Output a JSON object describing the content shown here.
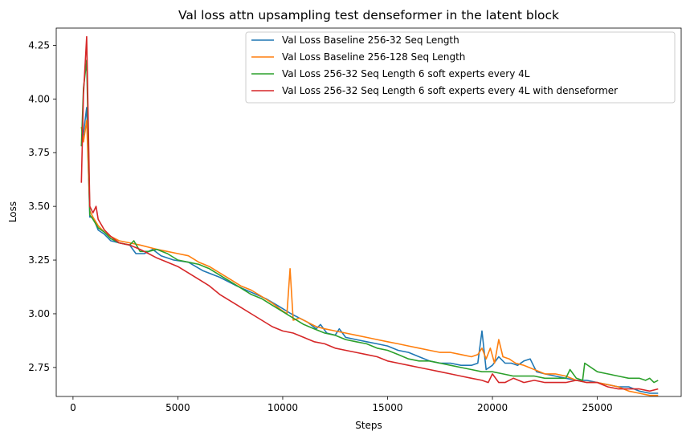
{
  "chart_data": {
    "type": "line",
    "title": "Val loss attn upsampling test denseformer in the latent block",
    "xlabel": "Steps",
    "ylabel": "Loss",
    "xlim": [
      -800,
      29000
    ],
    "ylim": [
      2.615,
      4.33
    ],
    "xticks": [
      0,
      5000,
      10000,
      15000,
      20000,
      25000
    ],
    "yticks": [
      2.75,
      3.0,
      3.25,
      3.5,
      3.75,
      4.0,
      4.25
    ],
    "xtick_labels": [
      "0",
      "5000",
      "10000",
      "15000",
      "20000",
      "25000"
    ],
    "ytick_labels": [
      "2.75",
      "3.00",
      "3.25",
      "3.50",
      "3.75",
      "4.00",
      "4.25"
    ],
    "grid": false,
    "legend_position": "top-right",
    "series": [
      {
        "name": "Val Loss Baseline 256-32 Seq Length",
        "color": "#1f77b4",
        "x": [
          400,
          500,
          650,
          800,
          950,
          1200,
          1500,
          1800,
          2200,
          2700,
          3000,
          3400,
          3800,
          4200,
          4800,
          5500,
          6200,
          7000,
          7800,
          8500,
          9200,
          9900,
          10400,
          10800,
          11200,
          11600,
          11800,
          12100,
          12500,
          12700,
          13000,
          13500,
          14000,
          14500,
          15000,
          15500,
          16000,
          16500,
          17000,
          17500,
          18000,
          18500,
          19000,
          19300,
          19500,
          19700,
          20000,
          20300,
          20600,
          20900,
          21200,
          21500,
          21800,
          22100,
          22500,
          23000,
          23500,
          24000,
          24500,
          25000,
          25500,
          26000,
          26500,
          27000,
          27500,
          27900
        ],
        "y": [
          3.78,
          3.84,
          3.96,
          3.45,
          3.45,
          3.39,
          3.37,
          3.34,
          3.33,
          3.32,
          3.28,
          3.28,
          3.3,
          3.27,
          3.25,
          3.24,
          3.2,
          3.17,
          3.13,
          3.1,
          3.07,
          3.03,
          3.0,
          2.98,
          2.96,
          2.93,
          2.95,
          2.91,
          2.9,
          2.93,
          2.89,
          2.88,
          2.87,
          2.86,
          2.85,
          2.83,
          2.82,
          2.8,
          2.78,
          2.77,
          2.77,
          2.76,
          2.76,
          2.77,
          2.92,
          2.74,
          2.76,
          2.8,
          2.77,
          2.77,
          2.76,
          2.78,
          2.79,
          2.73,
          2.72,
          2.71,
          2.7,
          2.69,
          2.69,
          2.68,
          2.67,
          2.66,
          2.66,
          2.64,
          2.63,
          2.63
        ]
      },
      {
        "name": "Val Loss Baseline 256-128 Seq Length",
        "color": "#ff7f0e",
        "x": [
          400,
          500,
          650,
          800,
          950,
          1200,
          1500,
          1800,
          2200,
          2700,
          3200,
          3600,
          4000,
          4500,
          5000,
          5500,
          6000,
          6500,
          7000,
          7500,
          8000,
          8500,
          9000,
          9500,
          9900,
          10200,
          10350,
          10500,
          10800,
          11200,
          11600,
          12000,
          12500,
          13000,
          13500,
          14000,
          14500,
          15000,
          15500,
          16000,
          16500,
          17000,
          17500,
          18000,
          18500,
          19000,
          19300,
          19500,
          19700,
          19900,
          20100,
          20300,
          20500,
          20800,
          21100,
          21500,
          22000,
          22500,
          23000,
          23500,
          24000,
          24500,
          25000,
          25500,
          26000,
          26500,
          27000,
          27500,
          27900
        ],
        "y": [
          3.87,
          3.8,
          3.9,
          3.48,
          3.45,
          3.41,
          3.38,
          3.36,
          3.34,
          3.33,
          3.32,
          3.31,
          3.3,
          3.29,
          3.28,
          3.27,
          3.24,
          3.22,
          3.19,
          3.16,
          3.13,
          3.11,
          3.08,
          3.05,
          3.02,
          3.0,
          3.21,
          2.97,
          2.98,
          2.96,
          2.94,
          2.93,
          2.92,
          2.91,
          2.9,
          2.89,
          2.88,
          2.87,
          2.86,
          2.85,
          2.84,
          2.83,
          2.82,
          2.82,
          2.81,
          2.8,
          2.81,
          2.84,
          2.79,
          2.84,
          2.77,
          2.88,
          2.8,
          2.79,
          2.77,
          2.76,
          2.74,
          2.72,
          2.72,
          2.71,
          2.69,
          2.68,
          2.68,
          2.67,
          2.66,
          2.64,
          2.63,
          2.62,
          2.62
        ]
      },
      {
        "name": "Val Loss 256-32 Seq Length 6 soft experts every 4L",
        "color": "#2ca02c",
        "x": [
          400,
          500,
          650,
          800,
          950,
          1200,
          1500,
          1800,
          2200,
          2700,
          2900,
          3200,
          3600,
          4000,
          4500,
          5000,
          5500,
          6000,
          6500,
          7000,
          7500,
          8000,
          8500,
          9000,
          9500,
          10000,
          10500,
          11000,
          11500,
          12000,
          12500,
          13000,
          13500,
          14000,
          14500,
          15000,
          15500,
          16000,
          16500,
          17000,
          17500,
          18000,
          18500,
          19000,
          19500,
          20000,
          20500,
          21000,
          21500,
          22000,
          22500,
          23000,
          23500,
          23700,
          24000,
          24300,
          24400,
          25000,
          25500,
          26000,
          26500,
          27000,
          27300,
          27500,
          27700,
          27900
        ],
        "y": [
          3.78,
          4.05,
          4.18,
          3.46,
          3.44,
          3.4,
          3.38,
          3.35,
          3.33,
          3.32,
          3.34,
          3.29,
          3.29,
          3.3,
          3.28,
          3.25,
          3.24,
          3.23,
          3.21,
          3.18,
          3.15,
          3.12,
          3.09,
          3.07,
          3.04,
          3.01,
          2.98,
          2.95,
          2.93,
          2.91,
          2.9,
          2.88,
          2.87,
          2.86,
          2.84,
          2.83,
          2.81,
          2.79,
          2.78,
          2.78,
          2.77,
          2.76,
          2.75,
          2.74,
          2.73,
          2.73,
          2.72,
          2.71,
          2.71,
          2.71,
          2.7,
          2.7,
          2.7,
          2.74,
          2.7,
          2.69,
          2.77,
          2.73,
          2.72,
          2.71,
          2.7,
          2.7,
          2.69,
          2.7,
          2.68,
          2.69
        ]
      },
      {
        "name": "Val Loss 256-32 Seq Length 6 soft experts every 4L with denseformer",
        "color": "#d62728",
        "x": [
          400,
          500,
          650,
          800,
          950,
          1100,
          1200,
          1500,
          1800,
          2200,
          2700,
          3200,
          3600,
          4000,
          4500,
          5000,
          5500,
          6000,
          6500,
          7000,
          7500,
          8000,
          8500,
          9000,
          9500,
          10000,
          10500,
          11000,
          11500,
          12000,
          12500,
          13000,
          13500,
          14000,
          14500,
          15000,
          15500,
          16000,
          16500,
          17000,
          17500,
          18000,
          18500,
          19000,
          19500,
          19800,
          20000,
          20300,
          20600,
          21000,
          21500,
          22000,
          22500,
          23000,
          23500,
          24000,
          24500,
          25000,
          25500,
          26000,
          26500,
          27000,
          27500,
          27900
        ],
        "y": [
          3.61,
          4.02,
          4.29,
          3.5,
          3.47,
          3.5,
          3.44,
          3.39,
          3.36,
          3.33,
          3.32,
          3.3,
          3.28,
          3.26,
          3.24,
          3.22,
          3.19,
          3.16,
          3.13,
          3.09,
          3.06,
          3.03,
          3.0,
          2.97,
          2.94,
          2.92,
          2.91,
          2.89,
          2.87,
          2.86,
          2.84,
          2.83,
          2.82,
          2.81,
          2.8,
          2.78,
          2.77,
          2.76,
          2.75,
          2.74,
          2.73,
          2.72,
          2.71,
          2.7,
          2.69,
          2.68,
          2.72,
          2.68,
          2.68,
          2.7,
          2.68,
          2.69,
          2.68,
          2.68,
          2.68,
          2.69,
          2.68,
          2.68,
          2.66,
          2.65,
          2.65,
          2.65,
          2.64,
          2.65
        ]
      }
    ]
  }
}
